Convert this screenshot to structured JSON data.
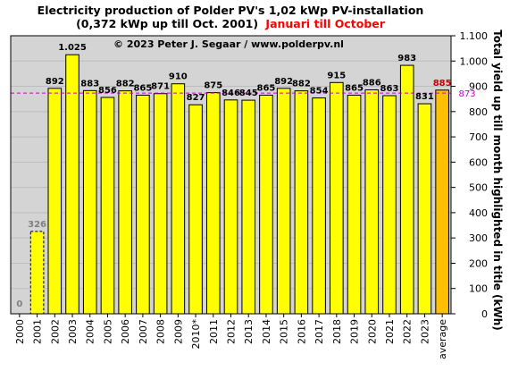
{
  "chart_data": {
    "type": "bar",
    "title_line1": "Electricity production  of Polder  PV's  1,02 kWp PV-installation",
    "title_line2_prefix": "(0,372 kWp up till Oct. 2001)",
    "title_line2_highlight": "Januari till October",
    "copyright": "© 2023 Peter J. Segaar / www.polderpv.nl",
    "ylabel": "Total yield up till month highlighted in title (kWh)",
    "ylim": [
      0,
      1100
    ],
    "ytick_labels": [
      "0",
      "100",
      "200",
      "300",
      "400",
      "500",
      "600",
      "700",
      "800",
      "900",
      "1.000",
      "1.100"
    ],
    "ytick_values": [
      0,
      100,
      200,
      300,
      400,
      500,
      600,
      700,
      800,
      900,
      1000,
      1100
    ],
    "categories": [
      "2000",
      "2001",
      "2002",
      "2003",
      "2004",
      "2005",
      "2006",
      "2007",
      "2008",
      "2009",
      "2010*",
      "2011",
      "2012",
      "2013",
      "2014",
      "2015",
      "2016",
      "2017",
      "2018",
      "2019",
      "2020",
      "2021",
      "2022",
      "2023",
      "average"
    ],
    "values": [
      0,
      326,
      892,
      1025,
      883,
      856,
      882,
      865,
      871,
      910,
      827,
      875,
      846,
      845,
      865,
      892,
      882,
      854,
      915,
      865,
      886,
      863,
      983,
      831,
      885
    ],
    "value_labels": [
      "0",
      "326",
      "892",
      "1.025",
      "883",
      "856",
      "882",
      "865",
      "871",
      "910",
      "827",
      "875",
      "846",
      "845",
      "865",
      "892",
      "882",
      "854",
      "915",
      "865",
      "886",
      "863",
      "983",
      "831",
      "885"
    ],
    "bar_styles": [
      "normal",
      "dashed",
      "normal",
      "normal",
      "normal",
      "normal",
      "normal",
      "normal",
      "normal",
      "normal",
      "normal",
      "normal",
      "normal",
      "normal",
      "normal",
      "normal",
      "normal",
      "normal",
      "normal",
      "normal",
      "normal",
      "normal",
      "normal",
      "normal",
      "average"
    ],
    "reference_line": {
      "value": 873,
      "label": "873",
      "color": "#cc00cc"
    },
    "colors": {
      "bar": "#ffff00",
      "average_bar": "#ffc000",
      "plot_background": "#d4d4d4",
      "title": "#000000",
      "highlight": "#ff0000",
      "partial_label": "#808080",
      "average_label": "#cc0000",
      "zero_label": "#808080"
    },
    "grid": "horizontal",
    "legend": "none"
  }
}
